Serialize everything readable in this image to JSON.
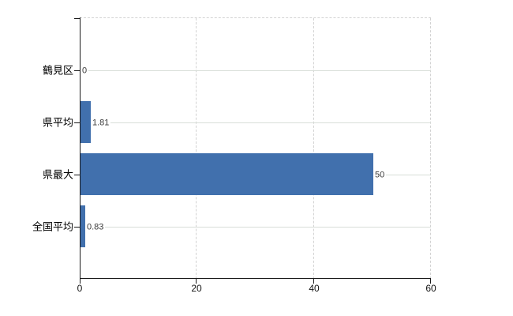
{
  "chart_data": {
    "type": "bar",
    "orientation": "horizontal",
    "title": "",
    "categories": [
      "鶴見区",
      "県平均",
      "県最大",
      "全国平均"
    ],
    "values": [
      0,
      1.81,
      50,
      0.83
    ],
    "value_labels": [
      "0",
      "1.81",
      "50",
      "0.83"
    ],
    "xlim": [
      0,
      60
    ],
    "x_tick_labels": [
      "0",
      "20",
      "40",
      "60"
    ],
    "x_tick_values": [
      0,
      20,
      40,
      60
    ],
    "legend": "none",
    "grid": {
      "vertical": "dashed",
      "horizontal": "solid",
      "top_border": "dashed"
    },
    "colors": {
      "bar": "#4170ad",
      "axis": "#1a1a1a",
      "grid_vertical": "#d2d2d2",
      "grid_horizontal": "#d8ded8",
      "value_label": "#3a3a3a",
      "category_label": "#000000",
      "tick_label": "#111111",
      "background": "#ffffff"
    }
  }
}
